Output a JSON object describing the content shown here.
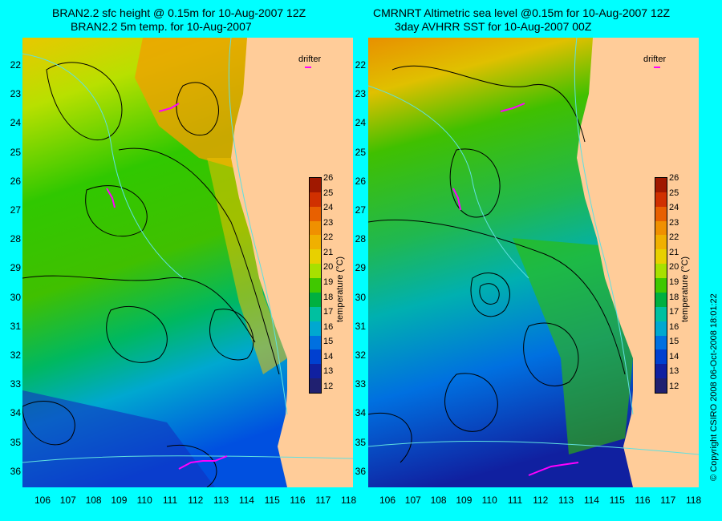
{
  "panels": [
    {
      "title1": "BRAN2.2 sfc height @ 0.15m for 10-Aug-2007 12Z",
      "title2": "BRAN2.2 5m temp. for 10-Aug-2007"
    },
    {
      "title1": "CMRNRT Altimetric sea level  @0.15m  for 10-Aug-2007 12Z",
      "title2": "3day AVHRR SST for 10-Aug-2007 00Z"
    }
  ],
  "lat_labels": [
    "22",
    "23",
    "24",
    "25",
    "26",
    "27",
    "28",
    "29",
    "30",
    "31",
    "32",
    "33",
    "34",
    "35",
    "36"
  ],
  "lon_labels": [
    "106",
    "107",
    "108",
    "109",
    "110",
    "111",
    "112",
    "113",
    "114",
    "115",
    "116",
    "117",
    "118"
  ],
  "colorbar": {
    "labels": [
      "26",
      "25",
      "24",
      "23",
      "22",
      "21",
      "20",
      "19",
      "18",
      "17",
      "16",
      "15",
      "14",
      "13",
      "12"
    ],
    "title": "temperature (°C)",
    "colors": [
      "#a01800",
      "#d03000",
      "#e86000",
      "#f09000",
      "#f0b000",
      "#e8d000",
      "#a8e000",
      "#40c800",
      "#00b040",
      "#00c0a0",
      "#00a8d0",
      "#0070e0",
      "#0040d0",
      "#1020a0",
      "#202070"
    ]
  },
  "legend": {
    "drifter_label": "drifter"
  },
  "copyright": "© Copyright CSIRO 2008   06-Oct-2008 18:01:22",
  "colors": {
    "background": "#00ffff",
    "land": "#ffcc99",
    "contour": "#000000",
    "drifter": "#ff00ff"
  }
}
